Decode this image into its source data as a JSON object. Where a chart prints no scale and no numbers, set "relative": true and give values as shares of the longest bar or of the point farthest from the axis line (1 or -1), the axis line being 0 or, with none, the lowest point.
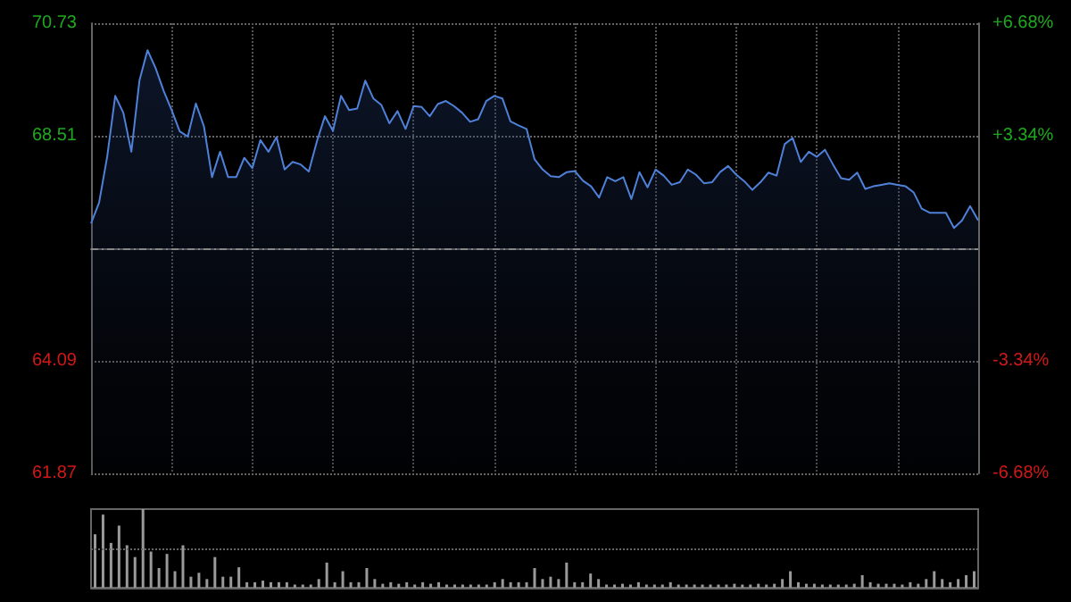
{
  "chart_data": [
    {
      "type": "area",
      "categories": [
        null,
        null,
        null,
        null,
        null,
        null,
        null,
        null,
        null,
        null,
        null,
        null,
        null,
        null,
        null,
        null,
        null,
        null,
        null,
        null,
        null,
        null,
        null,
        null,
        null,
        null,
        null,
        null,
        null,
        null,
        null,
        null,
        null,
        null,
        null,
        null,
        null,
        null,
        null,
        null,
        null,
        null,
        null,
        null,
        null,
        null,
        null,
        null,
        null,
        null,
        null,
        null,
        null,
        null,
        null,
        null,
        null,
        null,
        null,
        null,
        null,
        null,
        null,
        null,
        null,
        null,
        null,
        null,
        null,
        null,
        null,
        null,
        null,
        null,
        null,
        null,
        null,
        null,
        null,
        null,
        null,
        null,
        null,
        null,
        null,
        null,
        null,
        null,
        null,
        null,
        null,
        null,
        null,
        null,
        null,
        null,
        null,
        null,
        null,
        null,
        null,
        null,
        null,
        null,
        null,
        null,
        null,
        null,
        null,
        null,
        null
      ],
      "series": [
        {
          "color": "#4f81d9",
          "values": [
            66.79,
            67.2,
            68.1,
            69.3,
            68.97,
            68.2,
            69.6,
            70.2,
            69.85,
            69.4,
            69.02,
            68.6,
            68.5,
            69.15,
            68.7,
            67.7,
            68.2,
            67.7,
            67.7,
            68.08,
            67.88,
            68.43,
            68.2,
            68.49,
            67.85,
            68.0,
            67.95,
            67.81,
            68.4,
            68.9,
            68.61,
            69.3,
            69.02,
            69.05,
            69.6,
            69.25,
            69.12,
            68.76,
            69.0,
            68.65,
            69.1,
            69.08,
            68.9,
            69.14,
            69.2,
            69.1,
            68.97,
            68.79,
            68.84,
            69.2,
            69.3,
            69.25,
            68.8,
            68.72,
            68.65,
            68.05,
            67.85,
            67.72,
            67.7,
            67.8,
            67.82,
            67.63,
            67.52,
            67.3,
            67.7,
            67.62,
            67.7,
            67.27,
            67.8,
            67.5,
            67.85,
            67.73,
            67.55,
            67.6,
            67.85,
            67.75,
            67.58,
            67.6,
            67.8,
            67.92,
            67.75,
            67.62,
            67.45,
            67.6,
            67.79,
            67.73,
            68.35,
            68.47,
            68.0,
            68.2,
            68.1,
            68.24,
            67.95,
            67.68,
            67.65,
            67.79,
            67.47,
            67.52,
            67.55,
            67.58,
            67.55,
            67.52,
            67.4,
            67.08,
            67.0,
            67.0,
            67.0,
            66.7,
            66.85,
            67.13,
            66.85
          ]
        }
      ],
      "ylim": [
        61.87,
        70.73
      ],
      "yticks": [
        70.73,
        68.51,
        64.09,
        61.87
      ],
      "y2lim": [
        -6.68,
        6.68
      ],
      "y2ticks": [
        {
          "value": 6.68,
          "label": "+6.68%"
        },
        {
          "value": 3.34,
          "label": "+3.34%"
        },
        {
          "value": -3.34,
          "label": "-3.34%"
        },
        {
          "value": -6.68,
          "label": "-6.68%"
        }
      ],
      "ref_lines": [
        {
          "axis": "y",
          "value": 66.3,
          "color": "#888888",
          "line_style": "dashed"
        }
      ],
      "grid": true
    },
    {
      "type": "bar",
      "relative": true,
      "categories": [
        null,
        null,
        null,
        null,
        null,
        null,
        null,
        null,
        null,
        null,
        null,
        null,
        null,
        null,
        null,
        null,
        null,
        null,
        null,
        null,
        null,
        null,
        null,
        null,
        null,
        null,
        null,
        null,
        null,
        null,
        null,
        null,
        null,
        null,
        null,
        null,
        null,
        null,
        null,
        null,
        null,
        null,
        null,
        null,
        null,
        null,
        null,
        null,
        null,
        null,
        null,
        null,
        null,
        null,
        null,
        null,
        null,
        null,
        null,
        null,
        null,
        null,
        null,
        null,
        null,
        null,
        null,
        null,
        null,
        null,
        null,
        null,
        null,
        null,
        null,
        null,
        null,
        null,
        null,
        null,
        null,
        null,
        null,
        null,
        null,
        null,
        null,
        null,
        null,
        null,
        null,
        null,
        null,
        null,
        null,
        null,
        null,
        null,
        null,
        null,
        null,
        null,
        null,
        null,
        null,
        null,
        null,
        null,
        null,
        null,
        null
      ],
      "color": "#9a9a9a",
      "values": [
        0.68,
        0.93,
        0.57,
        0.79,
        0.54,
        0.39,
        1,
        0.46,
        0.25,
        0.43,
        0.21,
        0.54,
        0.14,
        0.19,
        0.11,
        0.39,
        0.14,
        0.14,
        0.26,
        0.07,
        0.07,
        0.09,
        0.07,
        0.07,
        0.07,
        0.04,
        0.04,
        0.04,
        0.11,
        0.32,
        0.07,
        0.21,
        0.07,
        0.07,
        0.25,
        0.11,
        0.05,
        0.07,
        0.05,
        0.07,
        0.04,
        0.07,
        0.05,
        0.07,
        0.04,
        0.04,
        0.04,
        0.04,
        0.04,
        0.04,
        0.07,
        0.11,
        0.07,
        0.07,
        0.07,
        0.25,
        0.11,
        0.14,
        0.11,
        0.32,
        0.07,
        0.07,
        0.18,
        0.11,
        0.04,
        0.04,
        0.05,
        0.04,
        0.07,
        0.04,
        0.04,
        0.04,
        0.07,
        0.04,
        0.04,
        0.04,
        0.04,
        0.04,
        0.04,
        0.04,
        0.05,
        0.04,
        0.04,
        0.05,
        0.04,
        0.05,
        0.11,
        0.21,
        0.07,
        0.05,
        0.05,
        0.04,
        0.04,
        0.04,
        0.04,
        0.05,
        0.16,
        0.07,
        0.05,
        0.05,
        0.05,
        0.04,
        0.07,
        0.05,
        0.11,
        0.21,
        0.11,
        0.07,
        0.11,
        0.16,
        0.21
      ],
      "ref_lines": [
        {
          "axis": "y",
          "value": 0.5,
          "color": "#666666",
          "line_style": "dotted"
        }
      ]
    }
  ]
}
